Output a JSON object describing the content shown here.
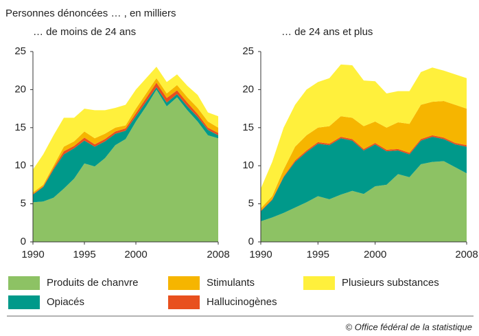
{
  "chart_data": [
    {
      "type": "area",
      "title": "Personnes dénoncées … , en milliers",
      "subtitle": "… de moins de 24 ans",
      "x": [
        1990,
        1991,
        1992,
        1993,
        1994,
        1995,
        1996,
        1997,
        1998,
        1999,
        2000,
        2001,
        2002,
        2003,
        2004,
        2005,
        2006,
        2007,
        2008
      ],
      "xlim": [
        1990,
        2008
      ],
      "xticks": [
        1990,
        1995,
        2000,
        2008
      ],
      "ylim": [
        0,
        25
      ],
      "yticks": [
        0,
        5,
        10,
        15,
        20,
        25
      ],
      "series": [
        {
          "name": "Produits de chanvre",
          "color": "#8dc264",
          "values": [
            5.2,
            5.3,
            5.8,
            7.0,
            8.3,
            10.3,
            9.9,
            11.0,
            12.7,
            13.5,
            15.8,
            17.8,
            20.0,
            17.8,
            19.0,
            17.3,
            15.8,
            14.0,
            13.6
          ]
        },
        {
          "name": "Opiacés",
          "color": "#00998a",
          "values": [
            1.0,
            1.9,
            3.7,
            4.5,
            4.0,
            3.0,
            2.6,
            2.2,
            1.5,
            1.1,
            0.7,
            0.6,
            0.3,
            0.5,
            0.4,
            0.5,
            0.6,
            0.7,
            0.4
          ]
        },
        {
          "name": "Hallucinogènes",
          "color": "#e8501e",
          "values": [
            0.1,
            0.1,
            0.2,
            0.4,
            0.3,
            0.4,
            0.3,
            0.3,
            0.3,
            0.3,
            0.4,
            0.5,
            0.6,
            0.6,
            0.5,
            0.5,
            0.4,
            0.3,
            0.3
          ]
        },
        {
          "name": "Stimulants",
          "color": "#f6b500",
          "values": [
            0.2,
            0.2,
            0.3,
            0.6,
            0.6,
            0.8,
            0.8,
            0.7,
            0.5,
            0.4,
            0.6,
            0.6,
            0.6,
            0.6,
            0.7,
            0.7,
            0.8,
            0.8,
            0.7
          ]
        },
        {
          "name": "Plusieurs substances",
          "color": "#fff03c",
          "values": [
            3.0,
            4.0,
            4.0,
            3.8,
            3.1,
            3.0,
            3.7,
            3.1,
            2.6,
            2.7,
            2.5,
            2.0,
            1.5,
            1.5,
            1.4,
            1.5,
            1.7,
            1.2,
            1.5
          ]
        }
      ]
    },
    {
      "type": "area",
      "subtitle": "… de 24 ans et plus",
      "x": [
        1990,
        1991,
        1992,
        1993,
        1994,
        1995,
        1996,
        1997,
        1998,
        1999,
        2000,
        2001,
        2002,
        2003,
        2004,
        2005,
        2006,
        2007,
        2008
      ],
      "xlim": [
        1990,
        2008
      ],
      "xticks": [
        1990,
        1995,
        2000,
        2008
      ],
      "ylim": [
        0,
        25
      ],
      "yticks": [
        0,
        5,
        10,
        15,
        20,
        25
      ],
      "series": [
        {
          "name": "Produits de chanvre",
          "color": "#8dc264",
          "values": [
            2.7,
            3.2,
            3.8,
            4.5,
            5.2,
            6.0,
            5.6,
            6.2,
            6.7,
            6.3,
            7.3,
            7.5,
            8.9,
            8.5,
            10.2,
            10.5,
            10.6,
            9.8,
            9.0
          ]
        },
        {
          "name": "Opiacés",
          "color": "#00998a",
          "values": [
            1.3,
            2.3,
            4.7,
            6.0,
            6.6,
            6.9,
            7.1,
            7.4,
            6.6,
            5.7,
            5.5,
            4.4,
            3.1,
            3.0,
            3.1,
            3.3,
            2.9,
            3.0,
            3.5
          ]
        },
        {
          "name": "Hallucinogènes",
          "color": "#e8501e",
          "values": [
            0.1,
            0.1,
            0.1,
            0.2,
            0.2,
            0.2,
            0.2,
            0.2,
            0.2,
            0.2,
            0.2,
            0.2,
            0.2,
            0.2,
            0.2,
            0.2,
            0.2,
            0.2,
            0.2
          ]
        },
        {
          "name": "Stimulants",
          "color": "#f6b500",
          "values": [
            0.3,
            0.4,
            0.9,
            1.8,
            2.0,
            1.9,
            2.3,
            2.7,
            2.8,
            3.0,
            2.8,
            2.9,
            3.5,
            3.8,
            4.5,
            4.4,
            4.8,
            5.0,
            4.8
          ]
        },
        {
          "name": "Plusieurs substances",
          "color": "#fff03c",
          "values": [
            2.6,
            4.5,
            5.5,
            5.5,
            6.0,
            6.0,
            6.3,
            6.8,
            6.9,
            6.0,
            5.3,
            4.5,
            4.1,
            4.3,
            4.3,
            4.5,
            4.0,
            4.0,
            4.0
          ]
        }
      ]
    }
  ],
  "source": "© Office fédéral de la statistique"
}
